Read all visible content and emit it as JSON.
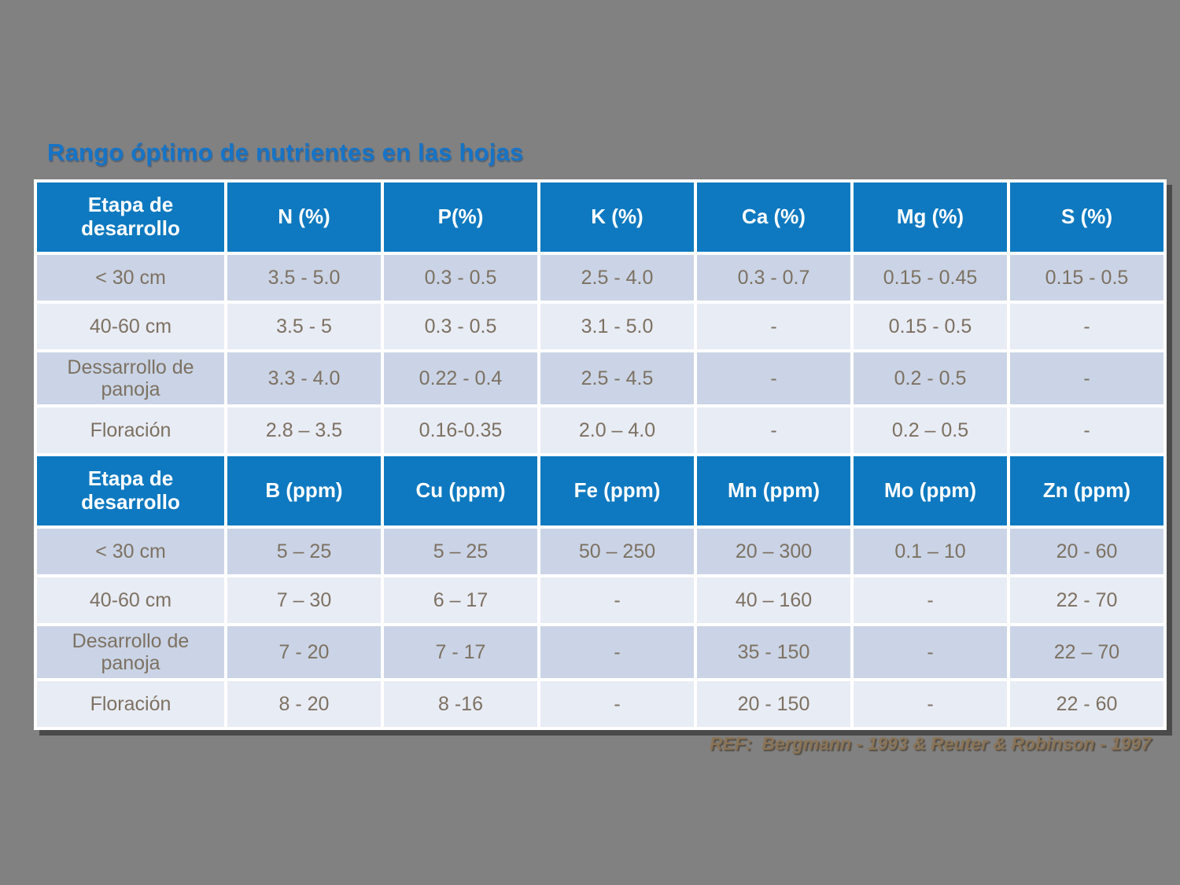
{
  "title": "Rango óptimo de nutrientes en las hojas",
  "footer": {
    "reference": "REF:  Bergmann - 1993 & Reuter & Robinson - 1997"
  },
  "colors": {
    "background": "#818181",
    "header_blue": "#0E79C0",
    "row_shaded": "#CAD4E6",
    "row_light": "#E8ECF5",
    "cell_text": "#7D7162",
    "title_blue": "#1674C6",
    "reference_brown": "#8A7457"
  },
  "table": {
    "sections": [
      {
        "name": "percent-section",
        "headers": [
          "Etapa de desarrollo",
          "N (%)",
          "P(%)",
          "K (%)",
          "Ca (%)",
          "Mg (%)",
          "S (%)"
        ],
        "rows": [
          {
            "label": "< 30 cm",
            "values": [
              "3.5 - 5.0",
              "0.3 - 0.5",
              "2.5 - 4.0",
              "0.3 - 0.7",
              "0.15 - 0.45",
              "0.15 - 0.5"
            ]
          },
          {
            "label": "40-60 cm",
            "values": [
              "3.5 - 5",
              "0.3 - 0.5",
              "3.1 - 5.0",
              "-",
              "0.15 - 0.5",
              "-"
            ]
          },
          {
            "label": "Dessarrollo de panoja",
            "values": [
              "3.3 - 4.0",
              "0.22 - 0.4",
              "2.5 - 4.5",
              "-",
              "0.2 - 0.5",
              "-"
            ]
          },
          {
            "label": "Floración",
            "values": [
              "2.8 – 3.5",
              "0.16-0.35",
              "2.0 – 4.0",
              "-",
              "0.2 – 0.5",
              "-"
            ]
          }
        ]
      },
      {
        "name": "ppm-section",
        "headers": [
          "Etapa de desarrollo",
          "B (ppm)",
          "Cu (ppm)",
          "Fe (ppm)",
          "Mn (ppm)",
          "Mo (ppm)",
          "Zn (ppm)"
        ],
        "rows": [
          {
            "label": "< 30 cm",
            "values": [
              "5 – 25",
              "5 – 25",
              "50 – 250",
              "20 – 300",
              "0.1 – 10",
              "20 - 60"
            ]
          },
          {
            "label": "40-60 cm",
            "values": [
              "7 – 30",
              "6 – 17",
              "-",
              "40 – 160",
              "-",
              "22 - 70"
            ]
          },
          {
            "label": "Desarrollo de panoja",
            "values": [
              "7 - 20",
              "7 - 17",
              "-",
              "35 - 150",
              "-",
              "22 – 70"
            ]
          },
          {
            "label": "Floración",
            "values": [
              "8 - 20",
              "8 -16",
              "-",
              "20 - 150",
              "-",
              "22 - 60"
            ]
          }
        ]
      }
    ]
  }
}
